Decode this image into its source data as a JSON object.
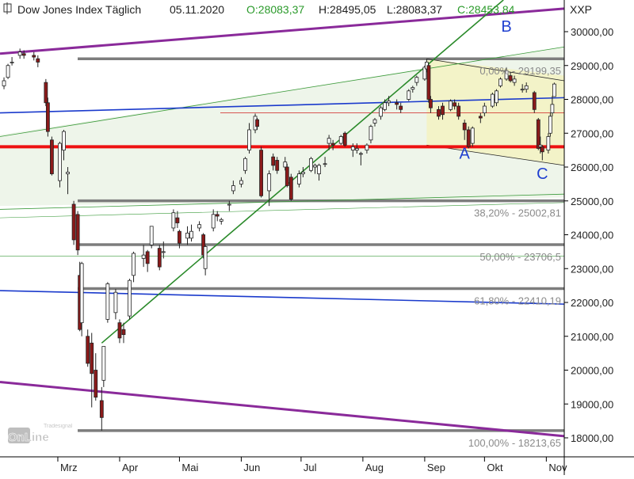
{
  "header": {
    "title": "Dow Jones Index Täglich",
    "date": "05.11.2020",
    "open": "O:28083,37",
    "high": "H:28495,05",
    "low": "L:28083,37",
    "close": "C:28453,84",
    "symbol": "XXP"
  },
  "branding": {
    "top": "Tradesignal",
    "bottom": "OnLine"
  },
  "chart_data": {
    "type": "candlestick",
    "title": "Dow Jones Index Täglich",
    "y_range": [
      17700,
      31200
    ],
    "x_range": [
      "2020-02-01",
      "2020-11-10"
    ],
    "x_ticks": [
      {
        "label": "Mrz",
        "date": "2020-03-01"
      },
      {
        "label": "Apr",
        "date": "2020-04-01"
      },
      {
        "label": "Mai",
        "date": "2020-05-01"
      },
      {
        "label": "Jun",
        "date": "2020-06-01"
      },
      {
        "label": "Jul",
        "date": "2020-07-01"
      },
      {
        "label": "Aug",
        "date": "2020-08-01"
      },
      {
        "label": "Sep",
        "date": "2020-09-01"
      },
      {
        "label": "Okt",
        "date": "2020-10-01"
      },
      {
        "label": "Nov",
        "date": "2020-11-01"
      }
    ],
    "y_ticks": [
      {
        "value": 30000,
        "label": "30000,00"
      },
      {
        "value": 29000,
        "label": "29000,00"
      },
      {
        "value": 28000,
        "label": "28000,00"
      },
      {
        "value": 27000,
        "label": "27000,00"
      },
      {
        "value": 26000,
        "label": "26000,00"
      },
      {
        "value": 25000,
        "label": "25000,00"
      },
      {
        "value": 24000,
        "label": "24000,00"
      },
      {
        "value": 23000,
        "label": "23000,00"
      },
      {
        "value": 22000,
        "label": "22000,00"
      },
      {
        "value": 21000,
        "label": "21000,00"
      },
      {
        "value": 20000,
        "label": "20000,00"
      },
      {
        "value": 19000,
        "label": "19000,00"
      },
      {
        "value": 18000,
        "label": "18000,00"
      }
    ],
    "fib_levels": [
      {
        "value": 29199.35,
        "label": "0,00% - 29199,35"
      },
      {
        "value": 25002.81,
        "label": "38,20% - 25002,81"
      },
      {
        "value": 23706.5,
        "label": "50,00% - 23706,5"
      },
      {
        "value": 22410.19,
        "label": "61,80% - 22410,19"
      },
      {
        "value": 18213.65,
        "label": "100,00% - 18213,65"
      }
    ],
    "support_level": 26600,
    "resistance_level_thin": 27600,
    "trend_lines": [
      {
        "name": "purple-upper",
        "color": "#8a2a9a",
        "points": [
          [
            "2020-02-01",
            29350
          ],
          [
            "2020-11-10",
            30680
          ]
        ]
      },
      {
        "name": "purple-lower",
        "color": "#8a2a9a",
        "points": [
          [
            "2020-02-01",
            19650
          ],
          [
            "2020-11-10",
            18050
          ]
        ]
      },
      {
        "name": "blue-upper",
        "color": "#1a3acc",
        "points": [
          [
            "2020-02-01",
            27600
          ],
          [
            "2020-11-10",
            28050
          ]
        ]
      },
      {
        "name": "blue-lower",
        "color": "#1a3acc",
        "points": [
          [
            "2020-02-01",
            22350
          ],
          [
            "2020-11-10",
            21950
          ]
        ]
      },
      {
        "name": "green-uptrend",
        "color": "#2a8a2a",
        "points": [
          [
            "2020-03-23",
            20800
          ],
          [
            "2020-09-02",
            29000
          ]
        ]
      }
    ],
    "point_labels": [
      {
        "label": "A",
        "date": "2020-09-21",
        "value": 26250
      },
      {
        "label": "B",
        "date": "2020-10-12",
        "value": 30000
      },
      {
        "label": "C",
        "date": "2020-10-30",
        "value": 25650
      }
    ],
    "series": [
      {
        "ohlc": [
          [
            "2020-02-03",
            28400,
            28650,
            28300,
            28550
          ],
          [
            "2020-02-05",
            28650,
            29050,
            28600,
            29000
          ],
          [
            "2020-02-07",
            29100,
            29250,
            29000,
            29100
          ],
          [
            "2020-02-11",
            29300,
            29500,
            29200,
            29400
          ],
          [
            "2020-02-13",
            29350,
            29450,
            29200,
            29300
          ],
          [
            "2020-02-18",
            29300,
            29400,
            29150,
            29250
          ],
          [
            "2020-02-20",
            29200,
            29300,
            28950,
            29100
          ],
          [
            "2020-02-24",
            28500,
            28600,
            27800,
            27900
          ],
          [
            "2020-02-25",
            27900,
            28050,
            26900,
            27050
          ],
          [
            "2020-02-27",
            26800,
            26900,
            25750,
            25800
          ],
          [
            "2020-03-02",
            25600,
            26750,
            25400,
            26700
          ],
          [
            "2020-03-04",
            26500,
            27100,
            26200,
            27050
          ],
          [
            "2020-03-06",
            25800,
            26000,
            25200,
            25850
          ],
          [
            "2020-03-09",
            24900,
            25000,
            23700,
            23850
          ],
          [
            "2020-03-11",
            24600,
            24700,
            23400,
            23550
          ],
          [
            "2020-03-12",
            22800,
            23200,
            21150,
            21200
          ],
          [
            "2020-03-13",
            21400,
            23200,
            21000,
            23150
          ],
          [
            "2020-03-16",
            21000,
            21200,
            20100,
            20200
          ],
          [
            "2020-03-18",
            20800,
            21100,
            18900,
            19900
          ],
          [
            "2020-03-20",
            20000,
            20500,
            19100,
            19200
          ],
          [
            "2020-03-23",
            19100,
            19500,
            18213,
            18600
          ],
          [
            "2020-03-24",
            19700,
            20700,
            19500,
            20700
          ],
          [
            "2020-03-26",
            21500,
            22600,
            21400,
            22550
          ],
          [
            "2020-03-30",
            21700,
            22400,
            21500,
            22300
          ],
          [
            "2020-04-01",
            21400,
            21500,
            20800,
            20950
          ],
          [
            "2020-04-03",
            21200,
            21400,
            20800,
            21050
          ],
          [
            "2020-04-06",
            21600,
            22700,
            21500,
            22650
          ],
          [
            "2020-04-08",
            22800,
            23500,
            22600,
            23450
          ],
          [
            "2020-04-13",
            23300,
            23700,
            23050,
            23400
          ],
          [
            "2020-04-15",
            23500,
            23550,
            22900,
            23150
          ],
          [
            "2020-04-17",
            23700,
            24250,
            23600,
            24250
          ],
          [
            "2020-04-21",
            23600,
            23700,
            22950,
            23050
          ],
          [
            "2020-04-23",
            23500,
            23800,
            23300,
            23500
          ],
          [
            "2020-04-28",
            24200,
            24750,
            24100,
            24650
          ],
          [
            "2020-04-30",
            24500,
            24700,
            24200,
            24350
          ],
          [
            "2020-05-01",
            24100,
            24150,
            23600,
            23750
          ],
          [
            "2020-05-05",
            23900,
            24250,
            23700,
            24050
          ],
          [
            "2020-05-07",
            23900,
            24300,
            23800,
            24100
          ],
          [
            "2020-05-11",
            24200,
            24400,
            24100,
            24300
          ],
          [
            "2020-05-13",
            24000,
            24050,
            23300,
            23400
          ],
          [
            "2020-05-14",
            23000,
            23700,
            22800,
            23650
          ],
          [
            "2020-05-18",
            24200,
            24750,
            24100,
            24600
          ],
          [
            "2020-05-20",
            24600,
            24700,
            24400,
            24550
          ],
          [
            "2020-05-22",
            24400,
            24500,
            24300,
            24450
          ],
          [
            "2020-05-26",
            24900,
            25000,
            24700,
            24900
          ],
          [
            "2020-05-28",
            25300,
            25600,
            25200,
            25450
          ],
          [
            "2020-06-01",
            25500,
            25700,
            25400,
            25600
          ],
          [
            "2020-06-03",
            25900,
            26300,
            25800,
            26250
          ],
          [
            "2020-06-05",
            26500,
            27300,
            26400,
            27100
          ],
          [
            "2020-06-08",
            27100,
            27580,
            27000,
            27500
          ],
          [
            "2020-06-09",
            27400,
            27450,
            27100,
            27200
          ],
          [
            "2020-06-11",
            26500,
            26600,
            25100,
            25150
          ],
          [
            "2020-06-15",
            25300,
            25900,
            24850,
            25800
          ],
          [
            "2020-06-17",
            26300,
            26400,
            25900,
            26050
          ],
          [
            "2020-06-19",
            26200,
            26300,
            25800,
            25900
          ],
          [
            "2020-06-23",
            26000,
            26300,
            25900,
            26150
          ],
          [
            "2020-06-24",
            26000,
            26100,
            25400,
            25450
          ],
          [
            "2020-06-26",
            25700,
            25800,
            25000,
            25050
          ],
          [
            "2020-06-30",
            25500,
            25900,
            25400,
            25800
          ],
          [
            "2020-07-02",
            25800,
            26000,
            25700,
            25850
          ],
          [
            "2020-07-06",
            25900,
            26300,
            25850,
            26250
          ],
          [
            "2020-07-08",
            26000,
            26100,
            25800,
            26050
          ],
          [
            "2020-07-10",
            25800,
            26100,
            25600,
            26050
          ],
          [
            "2020-07-13",
            26100,
            26300,
            26000,
            26100
          ],
          [
            "2020-07-15",
            26700,
            26950,
            26500,
            26850
          ],
          [
            "2020-07-17",
            26700,
            26800,
            26500,
            26650
          ],
          [
            "2020-07-21",
            26700,
            26950,
            26650,
            26900
          ],
          [
            "2020-07-23",
            27000,
            27050,
            26600,
            26650
          ],
          [
            "2020-07-27",
            26500,
            26700,
            26300,
            26600
          ],
          [
            "2020-07-29",
            26500,
            26700,
            26400,
            26550
          ],
          [
            "2020-07-31",
            26400,
            26450,
            26050,
            26400
          ],
          [
            "2020-08-03",
            26500,
            26700,
            26400,
            26650
          ],
          [
            "2020-08-05",
            26800,
            27250,
            26700,
            27200
          ],
          [
            "2020-08-07",
            27300,
            27450,
            27200,
            27400
          ],
          [
            "2020-08-10",
            27500,
            27800,
            27400,
            27750
          ],
          [
            "2020-08-12",
            27700,
            28000,
            27650,
            27900
          ],
          [
            "2020-08-14",
            27900,
            28100,
            27800,
            27950
          ],
          [
            "2020-08-18",
            27900,
            28000,
            27700,
            27850
          ],
          [
            "2020-08-20",
            27800,
            27900,
            27600,
            27700
          ],
          [
            "2020-08-24",
            28000,
            28300,
            27950,
            28250
          ],
          [
            "2020-08-26",
            28300,
            28400,
            28200,
            28350
          ],
          [
            "2020-08-28",
            28500,
            28700,
            28400,
            28650
          ],
          [
            "2020-09-01",
            28600,
            29000,
            28550,
            28950
          ],
          [
            "2020-09-02",
            28900,
            29199,
            28800,
            29100
          ],
          [
            "2020-09-03",
            29000,
            29050,
            27900,
            28000
          ],
          [
            "2020-09-04",
            28000,
            28100,
            27600,
            27750
          ],
          [
            "2020-09-08",
            27700,
            27800,
            27400,
            27500
          ],
          [
            "2020-09-10",
            27800,
            27900,
            27400,
            27550
          ],
          [
            "2020-09-14",
            27700,
            28000,
            27650,
            27950
          ],
          [
            "2020-09-16",
            27900,
            28000,
            27700,
            27800
          ],
          [
            "2020-09-18",
            27800,
            27900,
            27400,
            27500
          ],
          [
            "2020-09-21",
            27300,
            27400,
            26800,
            27100
          ],
          [
            "2020-09-23",
            27100,
            27200,
            26550,
            26600
          ],
          [
            "2020-09-25",
            26700,
            27200,
            26600,
            27150
          ],
          [
            "2020-09-29",
            27500,
            27600,
            27300,
            27450
          ],
          [
            "2020-10-01",
            27600,
            27900,
            27500,
            27800
          ],
          [
            "2020-10-05",
            27800,
            28200,
            27750,
            28150
          ],
          [
            "2020-10-07",
            27900,
            28300,
            27800,
            28250
          ],
          [
            "2020-10-09",
            28400,
            28650,
            28350,
            28600
          ],
          [
            "2020-10-12",
            28600,
            28950,
            28550,
            28850
          ],
          [
            "2020-10-14",
            28700,
            28800,
            28500,
            28550
          ],
          [
            "2020-10-16",
            28500,
            28700,
            28400,
            28600
          ],
          [
            "2020-10-20",
            28300,
            28450,
            28200,
            28300
          ],
          [
            "2020-10-22",
            28300,
            28500,
            28200,
            28400
          ],
          [
            "2020-10-26",
            28200,
            28250,
            27600,
            27700
          ],
          [
            "2020-10-28",
            27400,
            27450,
            26500,
            26550
          ],
          [
            "2020-10-29",
            26600,
            26900,
            26400,
            26650
          ],
          [
            "2020-10-30",
            26600,
            26650,
            26200,
            26450
          ],
          [
            "2020-11-02",
            26500,
            27000,
            26400,
            26900
          ],
          [
            "2020-11-03",
            27000,
            27600,
            26900,
            27500
          ],
          [
            "2020-11-04",
            27600,
            28100,
            27500,
            27850
          ],
          [
            "2020-11-05",
            28083,
            28495,
            28083,
            28453
          ]
        ]
      }
    ]
  }
}
